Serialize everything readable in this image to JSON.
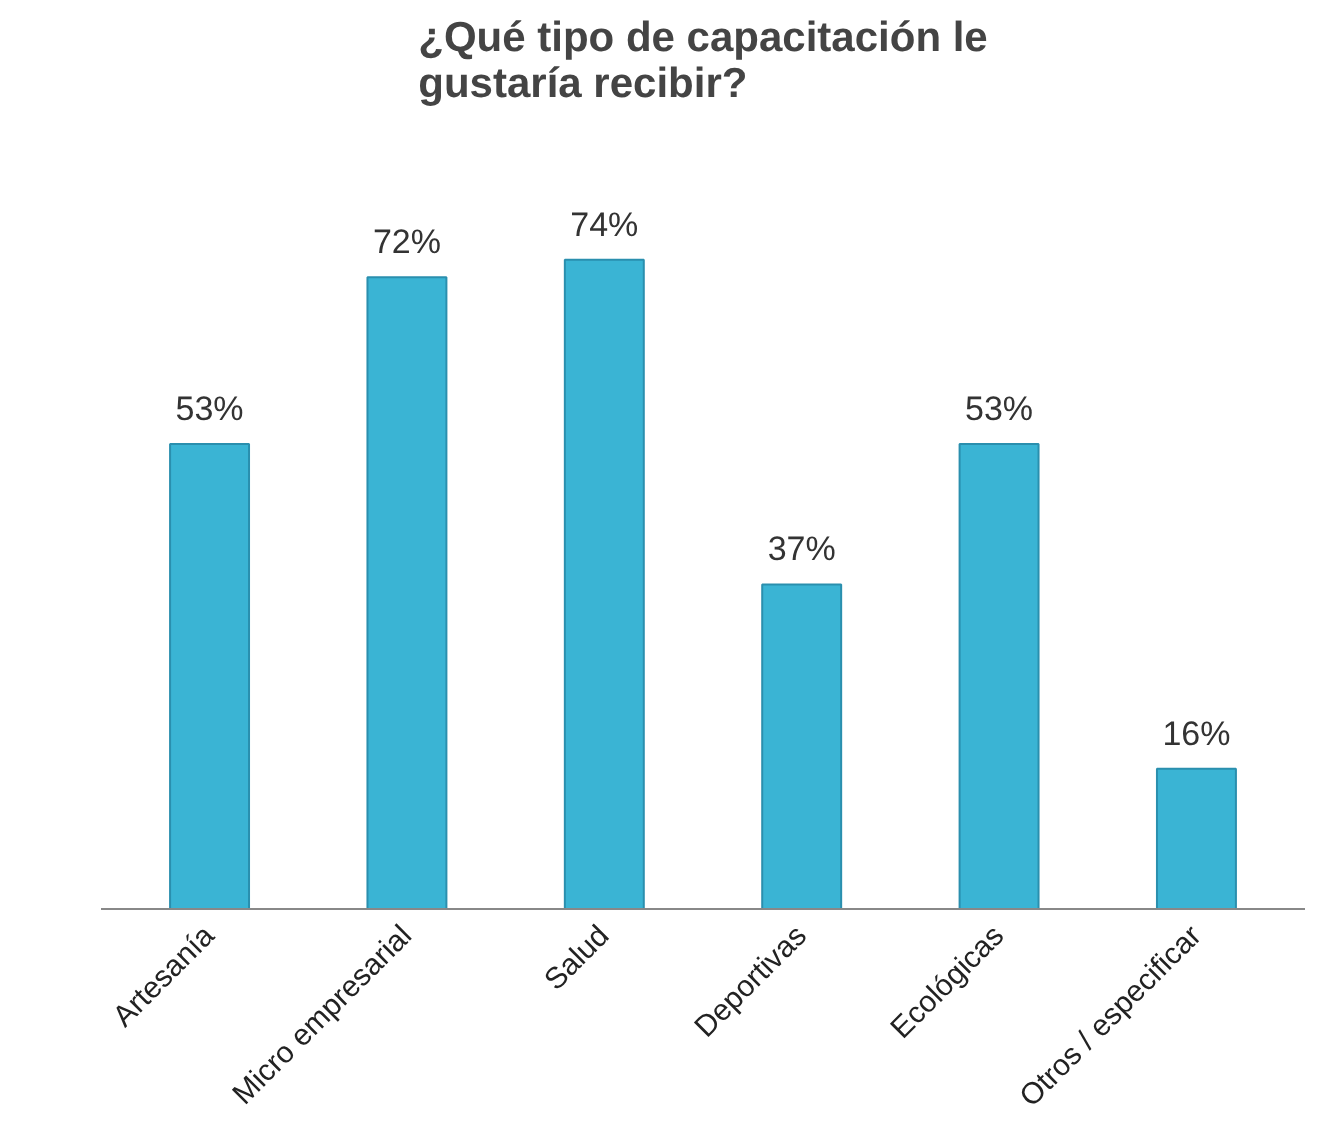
{
  "chart_data": {
    "type": "bar",
    "title": "¿Qué tipo de capacitación le gustaría recibir?",
    "categories": [
      "Artesanía",
      "Micro empresarial",
      "Salud",
      "Deportivas",
      "Ecológicas",
      "Otros / especificar"
    ],
    "values": [
      53,
      72,
      74,
      37,
      53,
      16
    ],
    "value_labels": [
      "53%",
      "72%",
      "74%",
      "37%",
      "53%",
      "16%"
    ],
    "color": "#3ab4d4",
    "grid": false
  }
}
